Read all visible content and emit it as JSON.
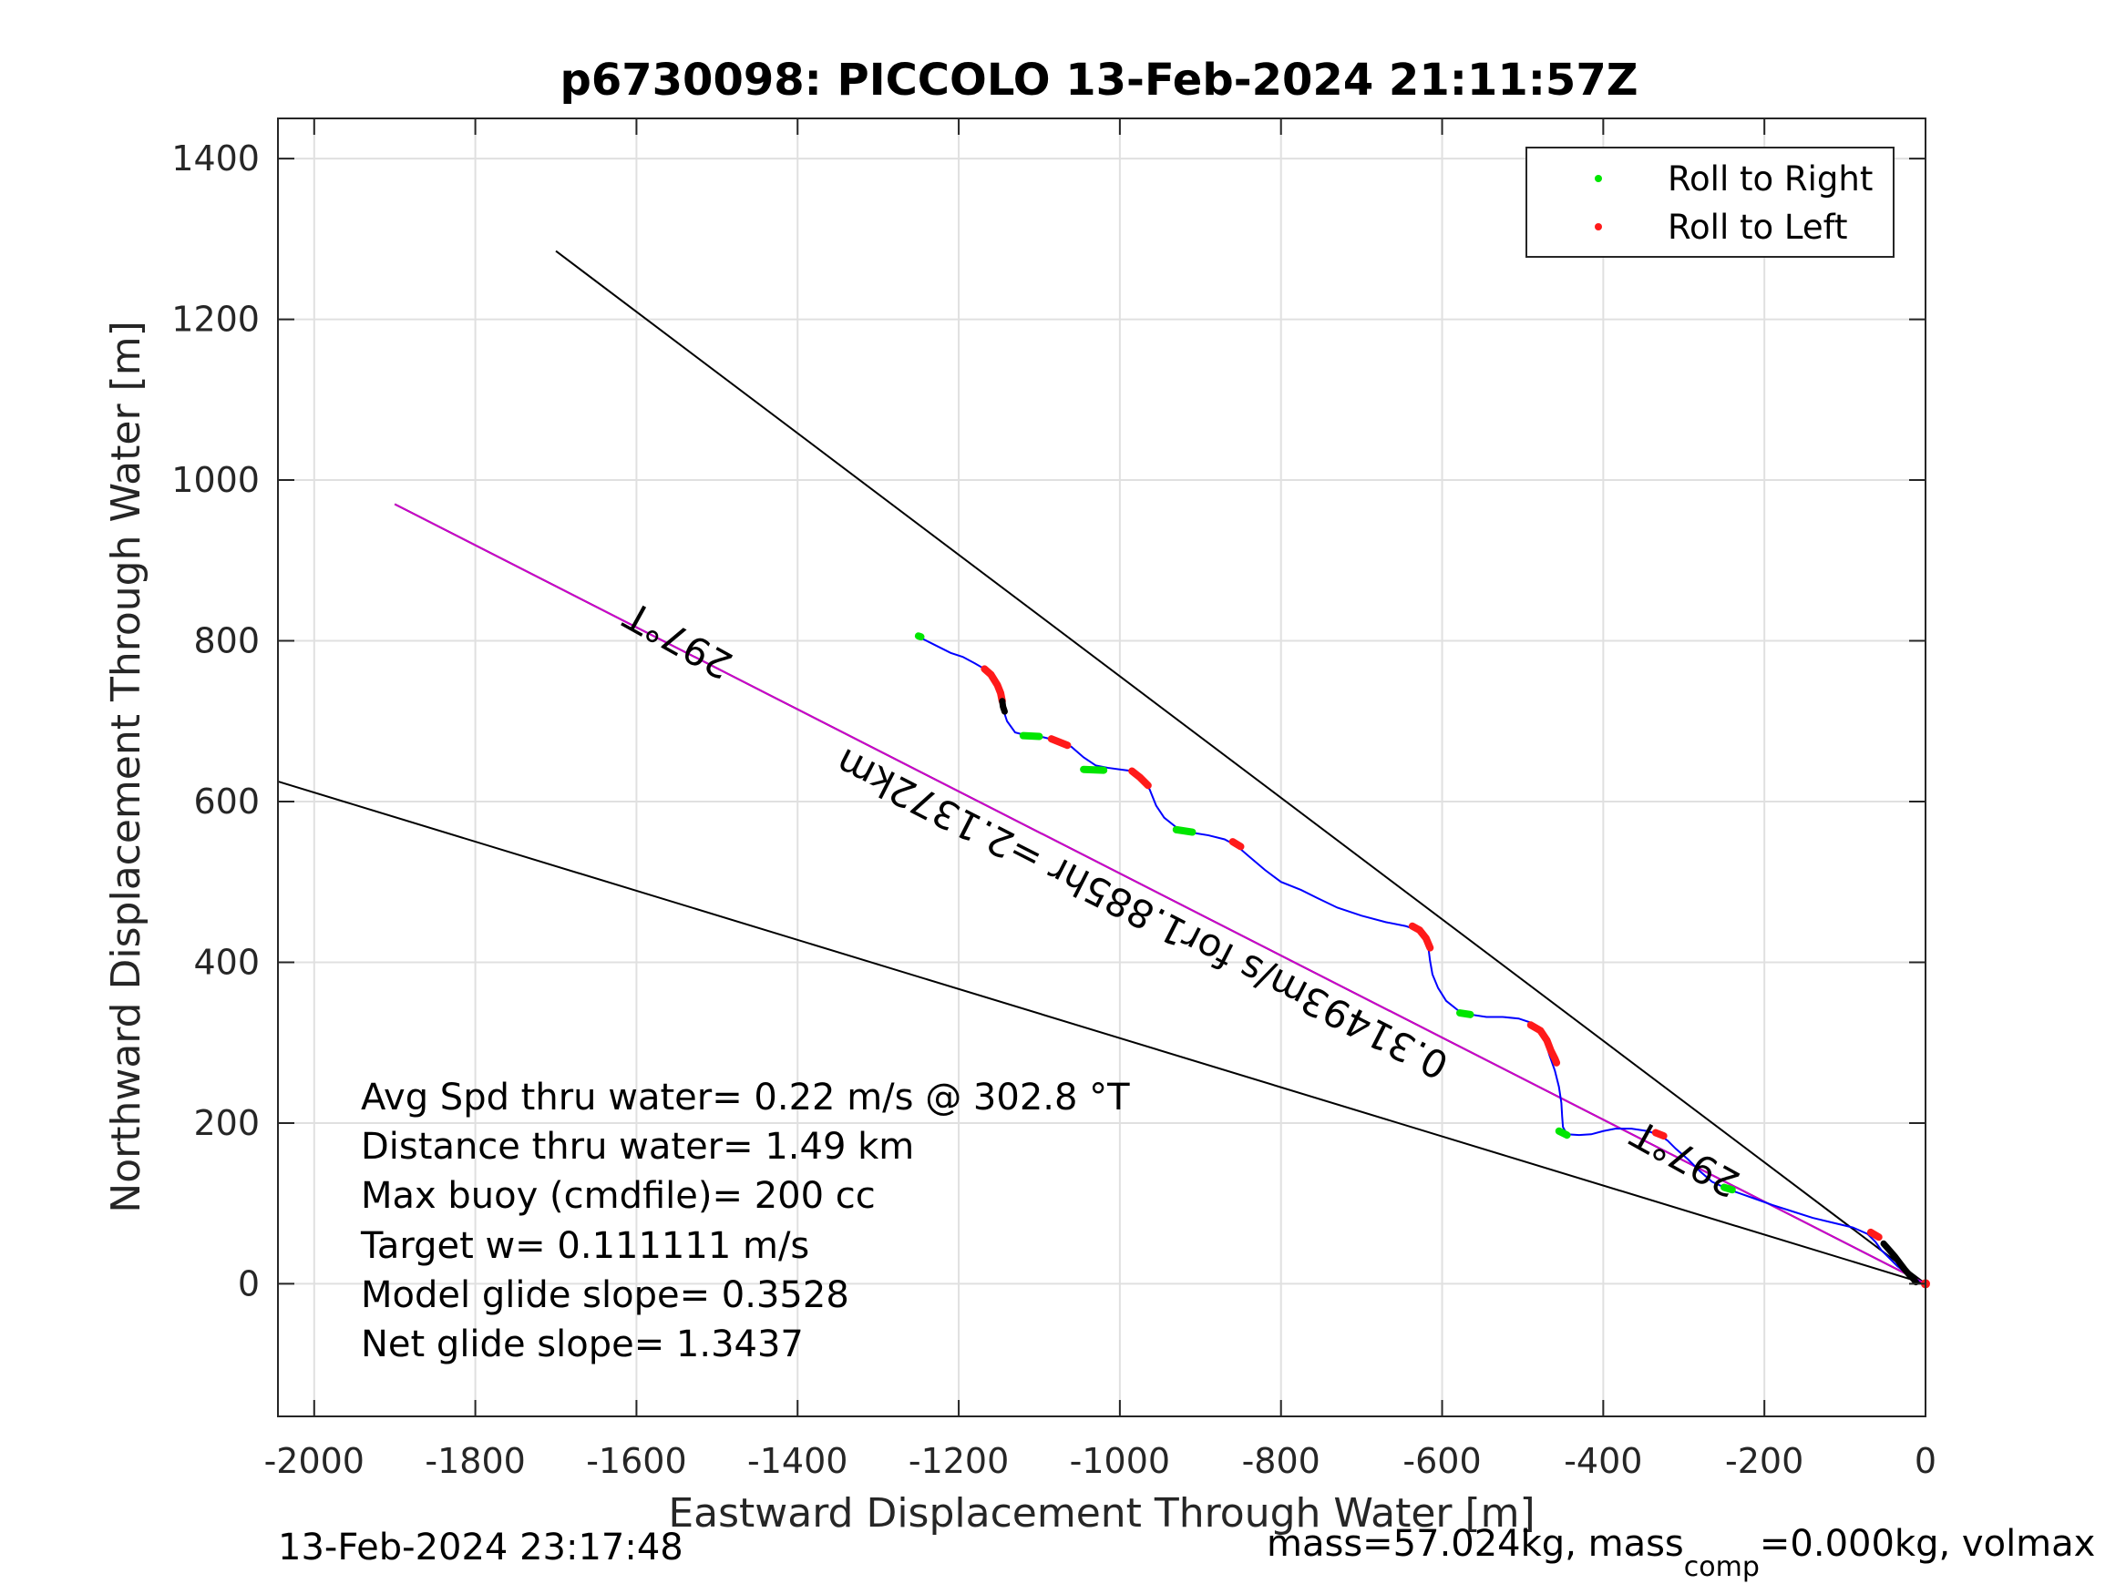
{
  "chart_data": {
    "type": "scatter",
    "title": "p6730098: PICCOLO 13-Feb-2024 21:11:57Z",
    "xlabel": "Eastward Displacement Through Water [m]",
    "ylabel": "Northward Displacement Through Water [m]",
    "xlim": [
      -2045,
      0
    ],
    "ylim": [
      -165,
      1450
    ],
    "xticks": [
      -2000,
      -1800,
      -1600,
      -1400,
      -1200,
      -1000,
      -800,
      -600,
      -400,
      -200,
      0
    ],
    "yticks": [
      0,
      200,
      400,
      600,
      800,
      1000,
      1200,
      1400
    ],
    "grid": true,
    "legend_position": "top-right",
    "legend": [
      {
        "label": "Roll to Right",
        "color": "#00e600"
      },
      {
        "label": "Roll to Left",
        "color": "#ff1a1a"
      }
    ],
    "track": {
      "color": "#0000ff",
      "x": [
        -1250,
        -1230,
        -1210,
        -1195,
        -1180,
        -1168,
        -1160,
        -1152,
        -1147,
        -1145,
        -1140,
        -1130,
        -1115,
        -1095,
        -1075,
        -1060,
        -1045,
        -1030,
        -1015,
        -1000,
        -985,
        -972,
        -963,
        -955,
        -945,
        -930,
        -915,
        -890,
        -870,
        -855,
        -840,
        -820,
        -800,
        -775,
        -755,
        -730,
        -700,
        -670,
        -645,
        -630,
        -622,
        -617,
        -615,
        -612,
        -605,
        -595,
        -580,
        -565,
        -545,
        -525,
        -505,
        -490,
        -480,
        -472,
        -467,
        -460,
        -455,
        -452,
        -451,
        -450,
        -445,
        -430,
        -415,
        -400,
        -385,
        -365,
        -345,
        -330,
        -320,
        -310,
        -295,
        -280,
        -265,
        -250,
        -235,
        -215,
        -190,
        -165,
        -140,
        -115,
        -90,
        -72,
        -62,
        -55,
        -45,
        -35,
        -25,
        -15,
        -8
      ],
      "y": [
        805,
        795,
        785,
        780,
        772,
        765,
        758,
        745,
        732,
        715,
        700,
        686,
        682,
        680,
        675,
        668,
        655,
        645,
        642,
        640,
        638,
        628,
        615,
        595,
        580,
        568,
        562,
        558,
        553,
        545,
        532,
        515,
        500,
        490,
        480,
        468,
        458,
        450,
        445,
        440,
        430,
        418,
        402,
        385,
        368,
        352,
        340,
        335,
        332,
        332,
        330,
        325,
        315,
        302,
        285,
        265,
        245,
        225,
        208,
        195,
        186,
        185,
        186,
        190,
        193,
        193,
        190,
        185,
        178,
        168,
        155,
        140,
        127,
        120,
        114,
        107,
        98,
        90,
        82,
        76,
        70,
        62,
        52,
        42,
        32,
        22,
        14,
        8,
        3
      ]
    },
    "roll_right_segments": [
      {
        "x": [
          -1120,
          -1100
        ],
        "y": [
          682,
          681
        ]
      },
      {
        "x": [
          -1045,
          -1020
        ],
        "y": [
          640,
          639
        ]
      },
      {
        "x": [
          -930,
          -910
        ],
        "y": [
          565,
          562
        ]
      },
      {
        "x": [
          -578,
          -565
        ],
        "y": [
          337,
          335
        ]
      },
      {
        "x": [
          -455,
          -445
        ],
        "y": [
          190,
          185
        ]
      },
      {
        "x": [
          -250,
          -240
        ],
        "y": [
          120,
          117
        ]
      },
      {
        "x": [
          -1250,
          -1247
        ],
        "y": [
          806,
          805
        ]
      }
    ],
    "roll_left_segments": [
      {
        "x": [
          -1168,
          -1160,
          -1152,
          -1148,
          -1146
        ],
        "y": [
          765,
          758,
          745,
          735,
          725
        ]
      },
      {
        "x": [
          -1085,
          -1065
        ],
        "y": [
          678,
          670
        ]
      },
      {
        "x": [
          -985,
          -975,
          -965
        ],
        "y": [
          638,
          630,
          620
        ]
      },
      {
        "x": [
          -860,
          -850
        ],
        "y": [
          550,
          544
        ]
      },
      {
        "x": [
          -637,
          -628,
          -620,
          -615
        ],
        "y": [
          445,
          440,
          430,
          418
        ]
      },
      {
        "x": [
          -490,
          -478,
          -470,
          -465,
          -460,
          -458
        ],
        "y": [
          322,
          315,
          303,
          290,
          280,
          275
        ]
      },
      {
        "x": [
          -335,
          -325
        ],
        "y": [
          188,
          184
        ]
      },
      {
        "x": [
          -68,
          -58
        ],
        "y": [
          64,
          58
        ]
      }
    ],
    "dive_segments": [
      {
        "x": [
          -1146,
          -1145,
          -1143
        ],
        "y": [
          725,
          718,
          712
        ]
      },
      {
        "x": [
          -52,
          -45,
          -38,
          -32,
          -26,
          -20,
          -15,
          -12
        ],
        "y": [
          50,
          42,
          34,
          26,
          18,
          11,
          6,
          2
        ]
      }
    ],
    "glide_line": {
      "color": "#cc00cc",
      "x": [
        -1900,
        0
      ],
      "y": [
        970,
        0
      ]
    },
    "bound_lines": [
      {
        "x": [
          -1700,
          0
        ],
        "y": [
          1285,
          0
        ]
      },
      {
        "x": [
          -2045,
          0
        ],
        "y": [
          625,
          0
        ]
      },
      {
        "x": [
          -1900,
          0
        ],
        "y": [
          970,
          0
        ]
      }
    ],
    "annotations": [
      {
        "text": "297°T",
        "x": -1540,
        "y": 815,
        "rotation": 209
      },
      {
        "text": "297°T",
        "x": -290,
        "y": 170,
        "rotation": 209
      },
      {
        "text": "0.31493m/s for1.885hr =2.1372km",
        "x": -965,
        "y": 475,
        "rotation": 207
      }
    ],
    "notes": [
      "Avg Spd thru water=  0.22 m/s @ 302.8 °T",
      "Distance thru water=  1.49 km",
      "Max buoy (cmdfile)= 200 cc",
      "Target w= 0.111111 m/s",
      "Model glide slope= 0.3528",
      "Net glide slope= 1.3437"
    ]
  },
  "footer": {
    "timestamp": "13-Feb-2024 23:17:48",
    "mass_prefix": "mass=57.024kg, mass",
    "mass_sub": "comp",
    "mass_suffix": "=0.000kg, volmax"
  }
}
